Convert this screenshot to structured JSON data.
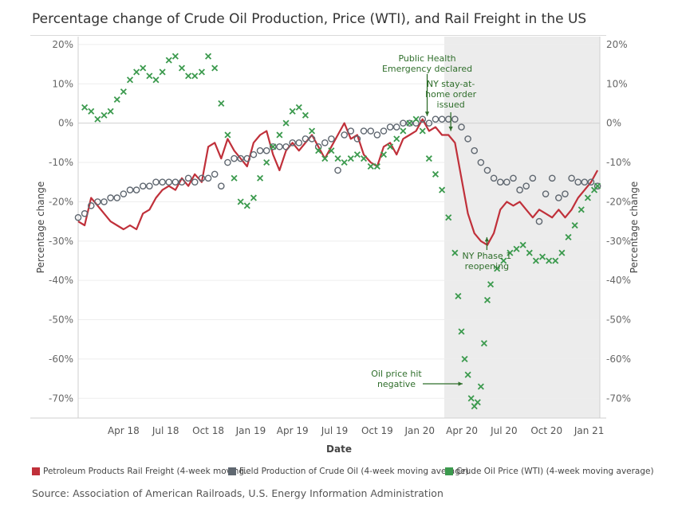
{
  "title": "Percentage change of Crude Oil Production, Price (WTI), and Rail Freight in the US",
  "source": "Source: Association of American Railroads, U.S. Energy Information Administration",
  "colors": {
    "rail": "#c0303a",
    "production": "#5f6770",
    "price": "#3c9a4e",
    "shade": "#ececec"
  },
  "chart_data": {
    "type": "line",
    "xlabel": "Date",
    "ylabel": "Percentage change",
    "ylabel_right": "Percentage change",
    "ylim": [
      -75,
      22
    ],
    "yticks": [
      20,
      10,
      0,
      -10,
      -20,
      -30,
      -40,
      -50,
      -60,
      -70
    ],
    "ytick_labels": [
      "20%",
      "10%",
      "0%",
      "-10%",
      "-20%",
      "-30%",
      "-40%",
      "-50%",
      "-60%",
      "-70%"
    ],
    "xlim": [
      "2018-01-07",
      "2021-02-07"
    ],
    "xticks": [
      {
        "date": "2018-04-15",
        "label": "Apr 18"
      },
      {
        "date": "2018-07-15",
        "label": "Jul 18"
      },
      {
        "date": "2018-10-15",
        "label": "Oct 18"
      },
      {
        "date": "2019-01-15",
        "label": "Jan 19"
      },
      {
        "date": "2019-04-15",
        "label": "Apr 19"
      },
      {
        "date": "2019-07-15",
        "label": "Jul 19"
      },
      {
        "date": "2019-10-15",
        "label": "Oct 19"
      },
      {
        "date": "2020-01-15",
        "label": "Jan 20"
      },
      {
        "date": "2020-04-15",
        "label": "Apr 20"
      },
      {
        "date": "2020-07-15",
        "label": "Jul 20"
      },
      {
        "date": "2020-10-15",
        "label": "Oct 20"
      },
      {
        "date": "2021-01-15",
        "label": "Jan 21"
      }
    ],
    "shaded_range": [
      "2020-03-08",
      "2021-02-07"
    ],
    "grid": "horizontal",
    "legend_position": "bottom",
    "series": [
      {
        "name": "Petroleum Products Rail Freight (4-week moving..",
        "style": "line",
        "points": [
          [
            "2018-01-07",
            -25
          ],
          [
            "2018-01-21",
            -26
          ],
          [
            "2018-02-04",
            -19
          ],
          [
            "2018-02-18",
            -21
          ],
          [
            "2018-03-04",
            -23
          ],
          [
            "2018-03-18",
            -25
          ],
          [
            "2018-04-01",
            -26
          ],
          [
            "2018-04-15",
            -27
          ],
          [
            "2018-04-29",
            -26
          ],
          [
            "2018-05-13",
            -27
          ],
          [
            "2018-05-27",
            -23
          ],
          [
            "2018-06-10",
            -22
          ],
          [
            "2018-06-24",
            -19
          ],
          [
            "2018-07-08",
            -17
          ],
          [
            "2018-07-22",
            -16
          ],
          [
            "2018-08-05",
            -17
          ],
          [
            "2018-08-19",
            -14
          ],
          [
            "2018-09-02",
            -16
          ],
          [
            "2018-09-16",
            -13
          ],
          [
            "2018-10-01",
            -15
          ],
          [
            "2018-10-15",
            -6
          ],
          [
            "2018-10-29",
            -5
          ],
          [
            "2018-11-12",
            -9
          ],
          [
            "2018-11-26",
            -4
          ],
          [
            "2018-12-10",
            -7
          ],
          [
            "2018-12-24",
            -9
          ],
          [
            "2019-01-07",
            -11
          ],
          [
            "2019-01-21",
            -5
          ],
          [
            "2019-02-04",
            -3
          ],
          [
            "2019-02-18",
            -2
          ],
          [
            "2019-03-04",
            -8
          ],
          [
            "2019-03-18",
            -12
          ],
          [
            "2019-04-01",
            -7
          ],
          [
            "2019-04-15",
            -5
          ],
          [
            "2019-04-29",
            -7
          ],
          [
            "2019-05-13",
            -5
          ],
          [
            "2019-05-27",
            -3
          ],
          [
            "2019-06-10",
            -6
          ],
          [
            "2019-06-24",
            -9
          ],
          [
            "2019-07-08",
            -6
          ],
          [
            "2019-07-22",
            -3
          ],
          [
            "2019-08-05",
            0
          ],
          [
            "2019-08-19",
            -4
          ],
          [
            "2019-09-02",
            -3
          ],
          [
            "2019-09-16",
            -8
          ],
          [
            "2019-10-01",
            -10
          ],
          [
            "2019-10-15",
            -11
          ],
          [
            "2019-10-29",
            -6
          ],
          [
            "2019-11-12",
            -5
          ],
          [
            "2019-11-26",
            -8
          ],
          [
            "2019-12-10",
            -4
          ],
          [
            "2019-12-24",
            -3
          ],
          [
            "2020-01-07",
            -2
          ],
          [
            "2020-01-21",
            1
          ],
          [
            "2020-02-04",
            -2
          ],
          [
            "2020-02-18",
            -1
          ],
          [
            "2020-03-03",
            -3
          ],
          [
            "2020-03-17",
            -3
          ],
          [
            "2020-03-31",
            -5
          ],
          [
            "2020-04-14",
            -14
          ],
          [
            "2020-04-28",
            -23
          ],
          [
            "2020-05-12",
            -28
          ],
          [
            "2020-05-26",
            -30
          ],
          [
            "2020-06-09",
            -31
          ],
          [
            "2020-06-23",
            -28
          ],
          [
            "2020-07-07",
            -22
          ],
          [
            "2020-07-21",
            -20
          ],
          [
            "2020-08-04",
            -21
          ],
          [
            "2020-08-18",
            -20
          ],
          [
            "2020-09-01",
            -22
          ],
          [
            "2020-09-15",
            -24
          ],
          [
            "2020-09-29",
            -22
          ],
          [
            "2020-10-13",
            -23
          ],
          [
            "2020-10-27",
            -24
          ],
          [
            "2020-11-10",
            -22
          ],
          [
            "2020-11-24",
            -24
          ],
          [
            "2020-12-08",
            -22
          ],
          [
            "2020-12-22",
            -19
          ],
          [
            "2021-01-05",
            -17
          ],
          [
            "2021-01-19",
            -15
          ],
          [
            "2021-02-02",
            -12
          ]
        ]
      },
      {
        "name": "Field Production of Crude Oil (4-week moving average)",
        "style": "circle",
        "points": [
          [
            "2018-01-07",
            -24
          ],
          [
            "2018-01-21",
            -23
          ],
          [
            "2018-02-04",
            -21
          ],
          [
            "2018-02-18",
            -20
          ],
          [
            "2018-03-04",
            -20
          ],
          [
            "2018-03-18",
            -19
          ],
          [
            "2018-04-01",
            -19
          ],
          [
            "2018-04-15",
            -18
          ],
          [
            "2018-04-29",
            -17
          ],
          [
            "2018-05-13",
            -17
          ],
          [
            "2018-05-27",
            -16
          ],
          [
            "2018-06-10",
            -16
          ],
          [
            "2018-06-24",
            -15
          ],
          [
            "2018-07-08",
            -15
          ],
          [
            "2018-07-22",
            -15
          ],
          [
            "2018-08-05",
            -15
          ],
          [
            "2018-08-19",
            -15
          ],
          [
            "2018-09-02",
            -14
          ],
          [
            "2018-09-16",
            -15
          ],
          [
            "2018-10-01",
            -14
          ],
          [
            "2018-10-15",
            -14
          ],
          [
            "2018-10-29",
            -13
          ],
          [
            "2018-11-12",
            -16
          ],
          [
            "2018-11-26",
            -10
          ],
          [
            "2018-12-10",
            -9
          ],
          [
            "2018-12-24",
            -9
          ],
          [
            "2019-01-07",
            -9
          ],
          [
            "2019-01-21",
            -8
          ],
          [
            "2019-02-04",
            -7
          ],
          [
            "2019-02-18",
            -7
          ],
          [
            "2019-03-04",
            -6
          ],
          [
            "2019-03-18",
            -6
          ],
          [
            "2019-04-01",
            -6
          ],
          [
            "2019-04-15",
            -5
          ],
          [
            "2019-04-29",
            -5
          ],
          [
            "2019-05-13",
            -4
          ],
          [
            "2019-05-27",
            -4
          ],
          [
            "2019-06-10",
            -6
          ],
          [
            "2019-06-24",
            -5
          ],
          [
            "2019-07-08",
            -4
          ],
          [
            "2019-07-22",
            -12
          ],
          [
            "2019-08-05",
            -3
          ],
          [
            "2019-08-19",
            -2
          ],
          [
            "2019-09-02",
            -4
          ],
          [
            "2019-09-16",
            -2
          ],
          [
            "2019-10-01",
            -2
          ],
          [
            "2019-10-15",
            -3
          ],
          [
            "2019-10-29",
            -2
          ],
          [
            "2019-11-12",
            -1
          ],
          [
            "2019-11-26",
            -1
          ],
          [
            "2019-12-10",
            0
          ],
          [
            "2019-12-24",
            0
          ],
          [
            "2020-01-07",
            0
          ],
          [
            "2020-01-21",
            1
          ],
          [
            "2020-02-04",
            0
          ],
          [
            "2020-02-18",
            1
          ],
          [
            "2020-03-03",
            1
          ],
          [
            "2020-03-17",
            1
          ],
          [
            "2020-03-31",
            1
          ],
          [
            "2020-04-14",
            -1
          ],
          [
            "2020-04-28",
            -4
          ],
          [
            "2020-05-12",
            -7
          ],
          [
            "2020-05-26",
            -10
          ],
          [
            "2020-06-09",
            -12
          ],
          [
            "2020-06-23",
            -14
          ],
          [
            "2020-07-07",
            -15
          ],
          [
            "2020-07-21",
            -15
          ],
          [
            "2020-08-04",
            -14
          ],
          [
            "2020-08-18",
            -17
          ],
          [
            "2020-09-01",
            -16
          ],
          [
            "2020-09-15",
            -14
          ],
          [
            "2020-09-29",
            -25
          ],
          [
            "2020-10-13",
            -18
          ],
          [
            "2020-10-27",
            -14
          ],
          [
            "2020-11-10",
            -19
          ],
          [
            "2020-11-24",
            -18
          ],
          [
            "2020-12-08",
            -14
          ],
          [
            "2020-12-22",
            -15
          ],
          [
            "2021-01-05",
            -15
          ],
          [
            "2021-01-19",
            -15
          ],
          [
            "2021-02-02",
            -16
          ]
        ]
      },
      {
        "name": "Crude Oil Price (WTI) (4-week moving average)",
        "style": "cross",
        "points": [
          [
            "2018-01-21",
            4
          ],
          [
            "2018-02-04",
            3
          ],
          [
            "2018-02-18",
            1
          ],
          [
            "2018-03-04",
            2
          ],
          [
            "2018-03-18",
            3
          ],
          [
            "2018-04-01",
            6
          ],
          [
            "2018-04-15",
            8
          ],
          [
            "2018-04-29",
            11
          ],
          [
            "2018-05-13",
            13
          ],
          [
            "2018-05-27",
            14
          ],
          [
            "2018-06-10",
            12
          ],
          [
            "2018-06-24",
            11
          ],
          [
            "2018-07-08",
            13
          ],
          [
            "2018-07-22",
            16
          ],
          [
            "2018-08-05",
            17
          ],
          [
            "2018-08-19",
            14
          ],
          [
            "2018-09-02",
            12
          ],
          [
            "2018-09-16",
            12
          ],
          [
            "2018-10-01",
            13
          ],
          [
            "2018-10-15",
            17
          ],
          [
            "2018-10-29",
            14
          ],
          [
            "2018-11-12",
            5
          ],
          [
            "2018-11-26",
            -3
          ],
          [
            "2018-12-10",
            -14
          ],
          [
            "2018-12-24",
            -20
          ],
          [
            "2019-01-07",
            -21
          ],
          [
            "2019-01-21",
            -19
          ],
          [
            "2019-02-04",
            -14
          ],
          [
            "2019-02-18",
            -10
          ],
          [
            "2019-03-04",
            -6
          ],
          [
            "2019-03-18",
            -3
          ],
          [
            "2019-04-01",
            0
          ],
          [
            "2019-04-15",
            3
          ],
          [
            "2019-04-29",
            4
          ],
          [
            "2019-05-13",
            2
          ],
          [
            "2019-05-27",
            -2
          ],
          [
            "2019-06-10",
            -7
          ],
          [
            "2019-06-24",
            -9
          ],
          [
            "2019-07-08",
            -7
          ],
          [
            "2019-07-22",
            -9
          ],
          [
            "2019-08-05",
            -10
          ],
          [
            "2019-08-19",
            -9
          ],
          [
            "2019-09-02",
            -8
          ],
          [
            "2019-09-16",
            -9
          ],
          [
            "2019-10-01",
            -11
          ],
          [
            "2019-10-15",
            -11
          ],
          [
            "2019-10-29",
            -8
          ],
          [
            "2019-11-12",
            -6
          ],
          [
            "2019-11-26",
            -4
          ],
          [
            "2019-12-10",
            -2
          ],
          [
            "2019-12-24",
            0
          ],
          [
            "2020-01-07",
            1
          ],
          [
            "2020-01-21",
            -2
          ],
          [
            "2020-02-04",
            -9
          ],
          [
            "2020-02-18",
            -13
          ],
          [
            "2020-03-03",
            -17
          ],
          [
            "2020-03-17",
            -24
          ],
          [
            "2020-03-31",
            -33
          ],
          [
            "2020-04-07",
            -44
          ],
          [
            "2020-04-14",
            -53
          ],
          [
            "2020-04-21",
            -60
          ],
          [
            "2020-04-28",
            -64
          ],
          [
            "2020-05-05",
            -70
          ],
          [
            "2020-05-12",
            -72
          ],
          [
            "2020-05-19",
            -71
          ],
          [
            "2020-05-26",
            -67
          ],
          [
            "2020-06-02",
            -56
          ],
          [
            "2020-06-09",
            -45
          ],
          [
            "2020-06-16",
            -41
          ],
          [
            "2020-06-30",
            -37
          ],
          [
            "2020-07-14",
            -35
          ],
          [
            "2020-07-28",
            -33
          ],
          [
            "2020-08-11",
            -32
          ],
          [
            "2020-08-25",
            -31
          ],
          [
            "2020-09-08",
            -33
          ],
          [
            "2020-09-22",
            -35
          ],
          [
            "2020-10-06",
            -34
          ],
          [
            "2020-10-20",
            -35
          ],
          [
            "2020-11-03",
            -35
          ],
          [
            "2020-11-17",
            -33
          ],
          [
            "2020-12-01",
            -29
          ],
          [
            "2020-12-15",
            -26
          ],
          [
            "2020-12-29",
            -22
          ],
          [
            "2021-01-12",
            -19
          ],
          [
            "2021-01-26",
            -17
          ],
          [
            "2021-02-02",
            -16
          ]
        ]
      }
    ],
    "annotations": [
      {
        "text": "Public Health Emergency declared",
        "lines": [
          "Public Health",
          "Emergency declared"
        ],
        "date": "2020-01-31",
        "value": 1
      },
      {
        "text": "NY stay-at-home order issued",
        "lines": [
          "NY stay-at-",
          "home order",
          "issued"
        ],
        "date": "2020-03-22",
        "value": -3
      },
      {
        "text": "NY Phase 1 reopening",
        "lines": [
          "NY Phase 1",
          "reopening"
        ],
        "date": "2020-06-08",
        "value": -28
      },
      {
        "text": "Oil price hit negative",
        "lines": [
          "Oil price hit",
          "negative"
        ],
        "date": "2020-04-20",
        "value": -68
      }
    ]
  }
}
